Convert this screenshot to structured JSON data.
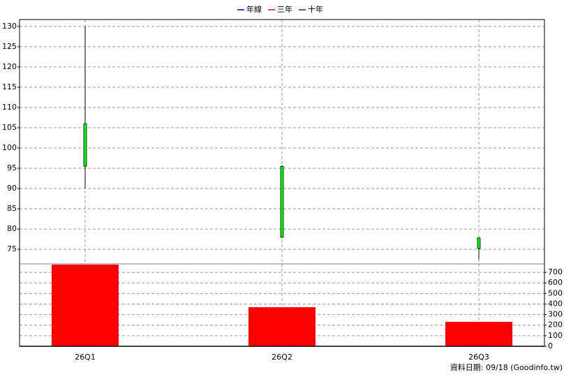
{
  "chart_data": {
    "type": "candlestick",
    "categories": [
      "26Q1",
      "26Q2",
      "26Q3"
    ],
    "open": [
      106,
      95.5,
      77.8
    ],
    "high": [
      130,
      95.7,
      78
    ],
    "low": [
      90,
      77.8,
      72.5
    ],
    "close": [
      95.5,
      78,
      75.2
    ],
    "candle_color": "#00ff00",
    "ylim": [
      71.4,
      131.7
    ],
    "yticks": [
      75,
      80,
      85,
      90,
      95,
      100,
      105,
      110,
      115,
      120,
      125,
      130
    ],
    "grid": true,
    "legend": [
      {
        "name": "年線",
        "color": "#0000ff"
      },
      {
        "name": "三年",
        "color": "#ff0000"
      },
      {
        "name": "十年",
        "color": "#800080"
      }
    ],
    "volume": {
      "values": [
        773,
        370,
        231
      ],
      "color": "#ff0000",
      "ylim": [
        0,
        780
      ],
      "yticks": [
        0,
        100,
        200,
        300,
        400,
        500,
        600,
        700
      ]
    },
    "footer": "資料日期: 09/18  (Goodinfo.tw)"
  }
}
